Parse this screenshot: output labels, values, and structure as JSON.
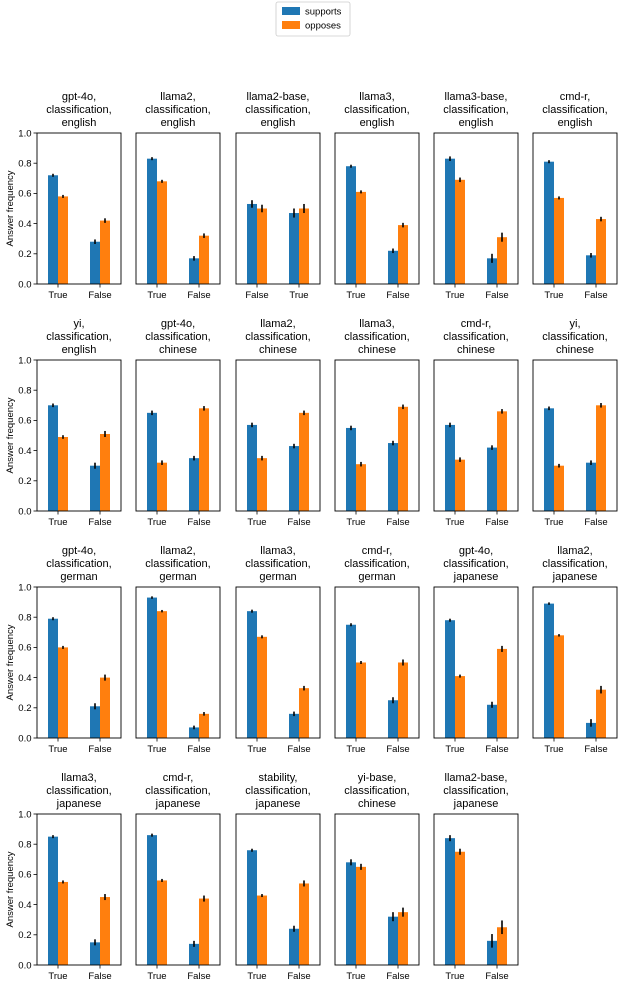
{
  "legend": {
    "location": "top-center",
    "items": [
      {
        "label": "supports",
        "color": "#1f77b4"
      },
      {
        "label": "opposes",
        "color": "#ff7f0e"
      }
    ]
  },
  "y_label": "Answer frequency",
  "chart_data": [
    {
      "type": "bar",
      "title": [
        "gpt-4o,",
        "classification,",
        "english"
      ],
      "categories": [
        "True",
        "False"
      ],
      "series": [
        {
          "name": "supports",
          "values": [
            0.72,
            0.28
          ],
          "err": [
            0.01,
            0.015
          ]
        },
        {
          "name": "opposes",
          "values": [
            0.58,
            0.42
          ],
          "err": [
            0.01,
            0.015
          ]
        }
      ],
      "ylim": [
        0,
        1
      ],
      "yticks": [
        "0.0",
        "0.2",
        "0.4",
        "0.6",
        "0.8",
        "1.0"
      ]
    },
    {
      "type": "bar",
      "title": [
        "llama2,",
        "classification,",
        "english"
      ],
      "categories": [
        "True",
        "False"
      ],
      "series": [
        {
          "name": "supports",
          "values": [
            0.83,
            0.17
          ],
          "err": [
            0.01,
            0.015
          ]
        },
        {
          "name": "opposes",
          "values": [
            0.68,
            0.32
          ],
          "err": [
            0.01,
            0.015
          ]
        }
      ],
      "ylim": [
        0,
        1
      ],
      "yticks": [
        "0.0",
        "0.2",
        "0.4",
        "0.6",
        "0.8",
        "1.0"
      ]
    },
    {
      "type": "bar",
      "title": [
        "llama2-base,",
        "classification,",
        "english"
      ],
      "categories": [
        "False",
        "True"
      ],
      "series": [
        {
          "name": "supports",
          "values": [
            0.53,
            0.47
          ],
          "err": [
            0.025,
            0.03
          ]
        },
        {
          "name": "opposes",
          "values": [
            0.5,
            0.5
          ],
          "err": [
            0.025,
            0.03
          ]
        }
      ],
      "ylim": [
        0,
        1
      ],
      "yticks": [
        "0.0",
        "0.2",
        "0.4",
        "0.6",
        "0.8",
        "1.0"
      ]
    },
    {
      "type": "bar",
      "title": [
        "llama3,",
        "classification,",
        "english"
      ],
      "categories": [
        "True",
        "False"
      ],
      "series": [
        {
          "name": "supports",
          "values": [
            0.78,
            0.22
          ],
          "err": [
            0.01,
            0.015
          ]
        },
        {
          "name": "opposes",
          "values": [
            0.61,
            0.39
          ],
          "err": [
            0.01,
            0.015
          ]
        }
      ],
      "ylim": [
        0,
        1
      ],
      "yticks": [
        "0.0",
        "0.2",
        "0.4",
        "0.6",
        "0.8",
        "1.0"
      ]
    },
    {
      "type": "bar",
      "title": [
        "llama3-base,",
        "classification,",
        "english"
      ],
      "categories": [
        "True",
        "False"
      ],
      "series": [
        {
          "name": "supports",
          "values": [
            0.83,
            0.17
          ],
          "err": [
            0.015,
            0.03
          ]
        },
        {
          "name": "opposes",
          "values": [
            0.69,
            0.31
          ],
          "err": [
            0.015,
            0.03
          ]
        }
      ],
      "ylim": [
        0,
        1
      ],
      "yticks": [
        "0.0",
        "0.2",
        "0.4",
        "0.6",
        "0.8",
        "1.0"
      ]
    },
    {
      "type": "bar",
      "title": [
        "cmd-r,",
        "classification,",
        "english"
      ],
      "categories": [
        "True",
        "False"
      ],
      "series": [
        {
          "name": "supports",
          "values": [
            0.81,
            0.19
          ],
          "err": [
            0.01,
            0.015
          ]
        },
        {
          "name": "opposes",
          "values": [
            0.57,
            0.43
          ],
          "err": [
            0.01,
            0.015
          ]
        }
      ],
      "ylim": [
        0,
        1
      ],
      "yticks": [
        "0.0",
        "0.2",
        "0.4",
        "0.6",
        "0.8",
        "1.0"
      ]
    },
    {
      "type": "bar",
      "title": [
        "yi,",
        "classification,",
        "english"
      ],
      "categories": [
        "True",
        "False"
      ],
      "series": [
        {
          "name": "supports",
          "values": [
            0.7,
            0.3
          ],
          "err": [
            0.012,
            0.02
          ]
        },
        {
          "name": "opposes",
          "values": [
            0.49,
            0.51
          ],
          "err": [
            0.012,
            0.02
          ]
        }
      ],
      "ylim": [
        0,
        1
      ],
      "yticks": [
        "0.0",
        "0.2",
        "0.4",
        "0.6",
        "0.8",
        "1.0"
      ]
    },
    {
      "type": "bar",
      "title": [
        "gpt-4o,",
        "classification,",
        "chinese"
      ],
      "categories": [
        "True",
        "False"
      ],
      "series": [
        {
          "name": "supports",
          "values": [
            0.65,
            0.35
          ],
          "err": [
            0.015,
            0.015
          ]
        },
        {
          "name": "opposes",
          "values": [
            0.32,
            0.68
          ],
          "err": [
            0.015,
            0.015
          ]
        }
      ],
      "ylim": [
        0,
        1
      ],
      "yticks": [
        "0.0",
        "0.2",
        "0.4",
        "0.6",
        "0.8",
        "1.0"
      ]
    },
    {
      "type": "bar",
      "title": [
        "llama2,",
        "classification,",
        "chinese"
      ],
      "categories": [
        "True",
        "False"
      ],
      "series": [
        {
          "name": "supports",
          "values": [
            0.57,
            0.43
          ],
          "err": [
            0.015,
            0.015
          ]
        },
        {
          "name": "opposes",
          "values": [
            0.35,
            0.65
          ],
          "err": [
            0.015,
            0.015
          ]
        }
      ],
      "ylim": [
        0,
        1
      ],
      "yticks": [
        "0.0",
        "0.2",
        "0.4",
        "0.6",
        "0.8",
        "1.0"
      ]
    },
    {
      "type": "bar",
      "title": [
        "llama3,",
        "classification,",
        "chinese"
      ],
      "categories": [
        "True",
        "False"
      ],
      "series": [
        {
          "name": "supports",
          "values": [
            0.55,
            0.45
          ],
          "err": [
            0.015,
            0.015
          ]
        },
        {
          "name": "opposes",
          "values": [
            0.31,
            0.69
          ],
          "err": [
            0.015,
            0.015
          ]
        }
      ],
      "ylim": [
        0,
        1
      ],
      "yticks": [
        "0.0",
        "0.2",
        "0.4",
        "0.6",
        "0.8",
        "1.0"
      ]
    },
    {
      "type": "bar",
      "title": [
        "cmd-r,",
        "classification,",
        "chinese"
      ],
      "categories": [
        "True",
        "False"
      ],
      "series": [
        {
          "name": "supports",
          "values": [
            0.57,
            0.42
          ],
          "err": [
            0.015,
            0.015
          ]
        },
        {
          "name": "opposes",
          "values": [
            0.34,
            0.66
          ],
          "err": [
            0.015,
            0.015
          ]
        }
      ],
      "ylim": [
        0,
        1
      ],
      "yticks": [
        "0.0",
        "0.2",
        "0.4",
        "0.6",
        "0.8",
        "1.0"
      ]
    },
    {
      "type": "bar",
      "title": [
        "yi,",
        "classification,",
        "chinese"
      ],
      "categories": [
        "True",
        "False"
      ],
      "series": [
        {
          "name": "supports",
          "values": [
            0.68,
            0.32
          ],
          "err": [
            0.012,
            0.015
          ]
        },
        {
          "name": "opposes",
          "values": [
            0.3,
            0.7
          ],
          "err": [
            0.012,
            0.015
          ]
        }
      ],
      "ylim": [
        0,
        1
      ],
      "yticks": [
        "0.0",
        "0.2",
        "0.4",
        "0.6",
        "0.8",
        "1.0"
      ]
    },
    {
      "type": "bar",
      "title": [
        "gpt-4o,",
        "classification,",
        "german"
      ],
      "categories": [
        "True",
        "False"
      ],
      "series": [
        {
          "name": "supports",
          "values": [
            0.79,
            0.21
          ],
          "err": [
            0.01,
            0.02
          ]
        },
        {
          "name": "opposes",
          "values": [
            0.6,
            0.4
          ],
          "err": [
            0.01,
            0.02
          ]
        }
      ],
      "ylim": [
        0,
        1
      ],
      "yticks": [
        "0.0",
        "0.2",
        "0.4",
        "0.6",
        "0.8",
        "1.0"
      ]
    },
    {
      "type": "bar",
      "title": [
        "llama2,",
        "classification,",
        "german"
      ],
      "categories": [
        "True",
        "False"
      ],
      "series": [
        {
          "name": "supports",
          "values": [
            0.93,
            0.07
          ],
          "err": [
            0.008,
            0.012
          ]
        },
        {
          "name": "opposes",
          "values": [
            0.84,
            0.16
          ],
          "err": [
            0.008,
            0.012
          ]
        }
      ],
      "ylim": [
        0,
        1
      ],
      "yticks": [
        "0.0",
        "0.2",
        "0.4",
        "0.6",
        "0.8",
        "1.0"
      ]
    },
    {
      "type": "bar",
      "title": [
        "llama3,",
        "classification,",
        "german"
      ],
      "categories": [
        "True",
        "False"
      ],
      "series": [
        {
          "name": "supports",
          "values": [
            0.84,
            0.16
          ],
          "err": [
            0.01,
            0.015
          ]
        },
        {
          "name": "opposes",
          "values": [
            0.67,
            0.33
          ],
          "err": [
            0.01,
            0.015
          ]
        }
      ],
      "ylim": [
        0,
        1
      ],
      "yticks": [
        "0.0",
        "0.2",
        "0.4",
        "0.6",
        "0.8",
        "1.0"
      ]
    },
    {
      "type": "bar",
      "title": [
        "cmd-r,",
        "classification,",
        "german"
      ],
      "categories": [
        "True",
        "False"
      ],
      "series": [
        {
          "name": "supports",
          "values": [
            0.75,
            0.25
          ],
          "err": [
            0.01,
            0.02
          ]
        },
        {
          "name": "opposes",
          "values": [
            0.5,
            0.5
          ],
          "err": [
            0.01,
            0.02
          ]
        }
      ],
      "ylim": [
        0,
        1
      ],
      "yticks": [
        "0.0",
        "0.2",
        "0.4",
        "0.6",
        "0.8",
        "1.0"
      ]
    },
    {
      "type": "bar",
      "title": [
        "gpt-4o,",
        "classification,",
        "japanese"
      ],
      "categories": [
        "True",
        "False"
      ],
      "series": [
        {
          "name": "supports",
          "values": [
            0.78,
            0.22
          ],
          "err": [
            0.01,
            0.02
          ]
        },
        {
          "name": "opposes",
          "values": [
            0.41,
            0.59
          ],
          "err": [
            0.01,
            0.02
          ]
        }
      ],
      "ylim": [
        0,
        1
      ],
      "yticks": [
        "0.0",
        "0.2",
        "0.4",
        "0.6",
        "0.8",
        "1.0"
      ]
    },
    {
      "type": "bar",
      "title": [
        "llama2,",
        "classification,",
        "japanese"
      ],
      "categories": [
        "True",
        "False"
      ],
      "series": [
        {
          "name": "supports",
          "values": [
            0.89,
            0.1
          ],
          "err": [
            0.008,
            0.025
          ]
        },
        {
          "name": "opposes",
          "values": [
            0.68,
            0.32
          ],
          "err": [
            0.008,
            0.025
          ]
        }
      ],
      "ylim": [
        0,
        1
      ],
      "yticks": [
        "0.0",
        "0.2",
        "0.4",
        "0.6",
        "0.8",
        "1.0"
      ]
    },
    {
      "type": "bar",
      "title": [
        "llama3,",
        "classification,",
        "japanese"
      ],
      "categories": [
        "True",
        "False"
      ],
      "series": [
        {
          "name": "supports",
          "values": [
            0.85,
            0.15
          ],
          "err": [
            0.01,
            0.02
          ]
        },
        {
          "name": "opposes",
          "values": [
            0.55,
            0.45
          ],
          "err": [
            0.01,
            0.02
          ]
        }
      ],
      "ylim": [
        0,
        1
      ],
      "yticks": [
        "0.0",
        "0.2",
        "0.4",
        "0.6",
        "0.8",
        "1.0"
      ]
    },
    {
      "type": "bar",
      "title": [
        "cmd-r,",
        "classification,",
        "japanese"
      ],
      "categories": [
        "True",
        "False"
      ],
      "series": [
        {
          "name": "supports",
          "values": [
            0.86,
            0.14
          ],
          "err": [
            0.01,
            0.02
          ]
        },
        {
          "name": "opposes",
          "values": [
            0.56,
            0.44
          ],
          "err": [
            0.01,
            0.02
          ]
        }
      ],
      "ylim": [
        0,
        1
      ],
      "yticks": [
        "0.0",
        "0.2",
        "0.4",
        "0.6",
        "0.8",
        "1.0"
      ]
    },
    {
      "type": "bar",
      "title": [
        "stability,",
        "classification,",
        "japanese"
      ],
      "categories": [
        "True",
        "False"
      ],
      "series": [
        {
          "name": "supports",
          "values": [
            0.76,
            0.24
          ],
          "err": [
            0.01,
            0.02
          ]
        },
        {
          "name": "opposes",
          "values": [
            0.46,
            0.54
          ],
          "err": [
            0.01,
            0.02
          ]
        }
      ],
      "ylim": [
        0,
        1
      ],
      "yticks": [
        "0.0",
        "0.2",
        "0.4",
        "0.6",
        "0.8",
        "1.0"
      ]
    },
    {
      "type": "bar",
      "title": [
        "yi-base,",
        "classification,",
        "chinese"
      ],
      "categories": [
        "True",
        "False"
      ],
      "series": [
        {
          "name": "supports",
          "values": [
            0.68,
            0.32
          ],
          "err": [
            0.02,
            0.03
          ]
        },
        {
          "name": "opposes",
          "values": [
            0.65,
            0.35
          ],
          "err": [
            0.02,
            0.03
          ]
        }
      ],
      "ylim": [
        0,
        1
      ],
      "yticks": [
        "0.0",
        "0.2",
        "0.4",
        "0.6",
        "0.8",
        "1.0"
      ]
    },
    {
      "type": "bar",
      "title": [
        "llama2-base,",
        "classification,",
        "japanese"
      ],
      "categories": [
        "True",
        "False"
      ],
      "series": [
        {
          "name": "supports",
          "values": [
            0.84,
            0.16
          ],
          "err": [
            0.02,
            0.045
          ]
        },
        {
          "name": "opposes",
          "values": [
            0.75,
            0.25
          ],
          "err": [
            0.02,
            0.045
          ]
        }
      ],
      "ylim": [
        0,
        1
      ],
      "yticks": [
        "0.0",
        "0.2",
        "0.4",
        "0.6",
        "0.8",
        "1.0"
      ]
    }
  ]
}
